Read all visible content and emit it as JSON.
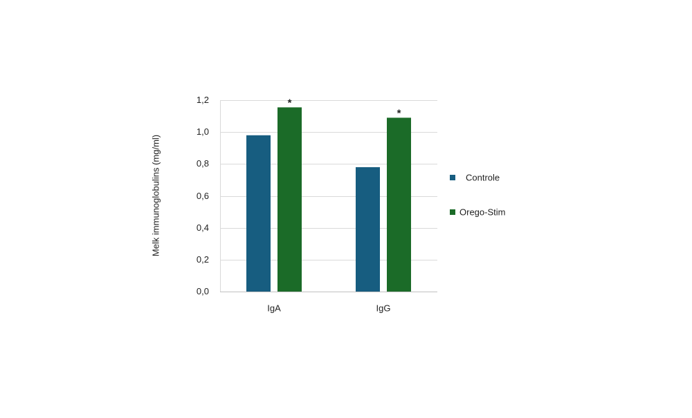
{
  "chart_data": {
    "type": "bar",
    "ylabel": "Melk immunoglobulins (mg/ml)",
    "xlabel": "",
    "categories": [
      "IgA",
      "IgG"
    ],
    "series": [
      {
        "name": "Controle",
        "values": [
          0.98,
          0.78
        ],
        "color": "#175d80"
      },
      {
        "name": "Orego-Stim",
        "values": [
          1.155,
          1.09
        ],
        "color": "#1b6b28"
      }
    ],
    "significance": [
      {
        "category": "IgA",
        "series": "Orego-Stim",
        "mark": "*"
      },
      {
        "category": "IgG",
        "series": "Orego-Stim",
        "mark": "*"
      }
    ],
    "ylim": [
      0,
      1.2
    ],
    "yticks": [
      "0,0",
      "0,2",
      "0,4",
      "0,6",
      "0,8",
      "1,0",
      "1,2"
    ],
    "grid": true,
    "legend_position": "right"
  }
}
